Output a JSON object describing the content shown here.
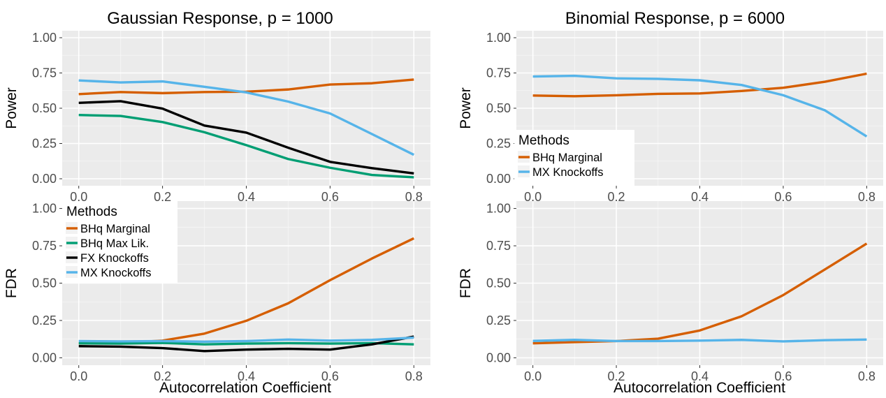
{
  "x_axis_title": "Autocorrelation Coefficient",
  "colors": {
    "BHq Marginal": "#d55e00",
    "BHq Max Lik.": "#009e73",
    "FX Knockoffs": "#000000",
    "MX Knockoffs": "#56b4e9"
  },
  "chart_data": [
    {
      "type": "line",
      "title": "Gaussian Response, p = 1000",
      "xlabel": "",
      "ylabel": "Power",
      "xlim": [
        0,
        0.8
      ],
      "ylim": [
        0,
        1
      ],
      "xticks": [
        "0.0",
        "0.2",
        "0.4",
        "0.6",
        "0.8"
      ],
      "yticks": [
        "0.00",
        "0.25",
        "0.50",
        "0.75",
        "1.00"
      ],
      "grid": true,
      "x": [
        0,
        0.1,
        0.2,
        0.3,
        0.4,
        0.5,
        0.6,
        0.7,
        0.8
      ],
      "series": [
        {
          "name": "BHq Marginal",
          "values": [
            0.6,
            0.615,
            0.607,
            0.615,
            0.617,
            0.633,
            0.668,
            0.677,
            0.703
          ]
        },
        {
          "name": "BHq Max Lik.",
          "values": [
            0.452,
            0.445,
            0.402,
            0.33,
            0.238,
            0.14,
            0.078,
            0.027,
            0.01
          ]
        },
        {
          "name": "FX Knockoffs",
          "values": [
            0.538,
            0.55,
            0.497,
            0.377,
            0.327,
            0.22,
            0.12,
            0.075,
            0.038
          ]
        },
        {
          "name": "MX Knockoffs",
          "values": [
            0.697,
            0.683,
            0.69,
            0.652,
            0.612,
            0.547,
            0.463,
            0.317,
            0.17
          ]
        }
      ]
    },
    {
      "type": "line",
      "title": "Binomial Response, p = 6000",
      "xlabel": "",
      "ylabel": "Power",
      "xlim": [
        0,
        0.8
      ],
      "ylim": [
        0,
        1
      ],
      "xticks": [
        "0.0",
        "0.2",
        "0.4",
        "0.6",
        "0.8"
      ],
      "yticks": [
        "0.00",
        "0.25",
        "0.50",
        "0.75",
        "1.00"
      ],
      "grid": true,
      "x": [
        0,
        0.1,
        0.2,
        0.3,
        0.4,
        0.5,
        0.6,
        0.7,
        0.8
      ],
      "series": [
        {
          "name": "BHq Marginal",
          "values": [
            0.59,
            0.585,
            0.592,
            0.602,
            0.605,
            0.622,
            0.645,
            0.688,
            0.745
          ]
        },
        {
          "name": "MX Knockoffs",
          "values": [
            0.725,
            0.73,
            0.712,
            0.708,
            0.698,
            0.665,
            0.592,
            0.485,
            0.3
          ]
        }
      ],
      "legend": {
        "title": "Methods",
        "placement": "bottom-left",
        "items": [
          "BHq Marginal",
          "MX Knockoffs"
        ]
      }
    },
    {
      "type": "line",
      "title": "",
      "xlabel": "Autocorrelation Coefficient",
      "ylabel": "FDR",
      "xlim": [
        0,
        0.8
      ],
      "ylim": [
        0,
        1
      ],
      "xticks": [
        "0.0",
        "0.2",
        "0.4",
        "0.6",
        "0.8"
      ],
      "yticks": [
        "0.00",
        "0.25",
        "0.50",
        "0.75",
        "1.00"
      ],
      "grid": true,
      "x": [
        0,
        0.1,
        0.2,
        0.3,
        0.4,
        0.5,
        0.6,
        0.7,
        0.8
      ],
      "series": [
        {
          "name": "BHq Marginal",
          "values": [
            0.097,
            0.1,
            0.115,
            0.162,
            0.248,
            0.365,
            0.52,
            0.665,
            0.8
          ]
        },
        {
          "name": "BHq Max Lik.",
          "values": [
            0.097,
            0.095,
            0.1,
            0.09,
            0.095,
            0.098,
            0.095,
            0.098,
            0.09
          ]
        },
        {
          "name": "FX Knockoffs",
          "values": [
            0.078,
            0.075,
            0.065,
            0.045,
            0.055,
            0.06,
            0.055,
            0.09,
            0.142
          ]
        },
        {
          "name": "MX Knockoffs",
          "values": [
            0.112,
            0.11,
            0.112,
            0.108,
            0.112,
            0.122,
            0.115,
            0.12,
            0.135
          ]
        }
      ],
      "legend": {
        "title": "Methods",
        "placement": "top-left",
        "items": [
          "BHq Marginal",
          "BHq Max Lik.",
          "FX Knockoffs",
          "MX Knockoffs"
        ]
      }
    },
    {
      "type": "line",
      "title": "",
      "xlabel": "Autocorrelation Coefficient",
      "ylabel": "FDR",
      "xlim": [
        0,
        0.8
      ],
      "ylim": [
        0,
        1
      ],
      "xticks": [
        "0.0",
        "0.2",
        "0.4",
        "0.6",
        "0.8"
      ],
      "yticks": [
        "0.00",
        "0.25",
        "0.50",
        "0.75",
        "1.00"
      ],
      "grid": true,
      "x": [
        0,
        0.1,
        0.2,
        0.3,
        0.4,
        0.5,
        0.6,
        0.7,
        0.8
      ],
      "series": [
        {
          "name": "BHq Marginal",
          "values": [
            0.097,
            0.105,
            0.112,
            0.128,
            0.183,
            0.278,
            0.42,
            0.592,
            0.765
          ]
        },
        {
          "name": "MX Knockoffs",
          "values": [
            0.113,
            0.12,
            0.112,
            0.112,
            0.115,
            0.12,
            0.11,
            0.118,
            0.122
          ]
        }
      ]
    }
  ]
}
